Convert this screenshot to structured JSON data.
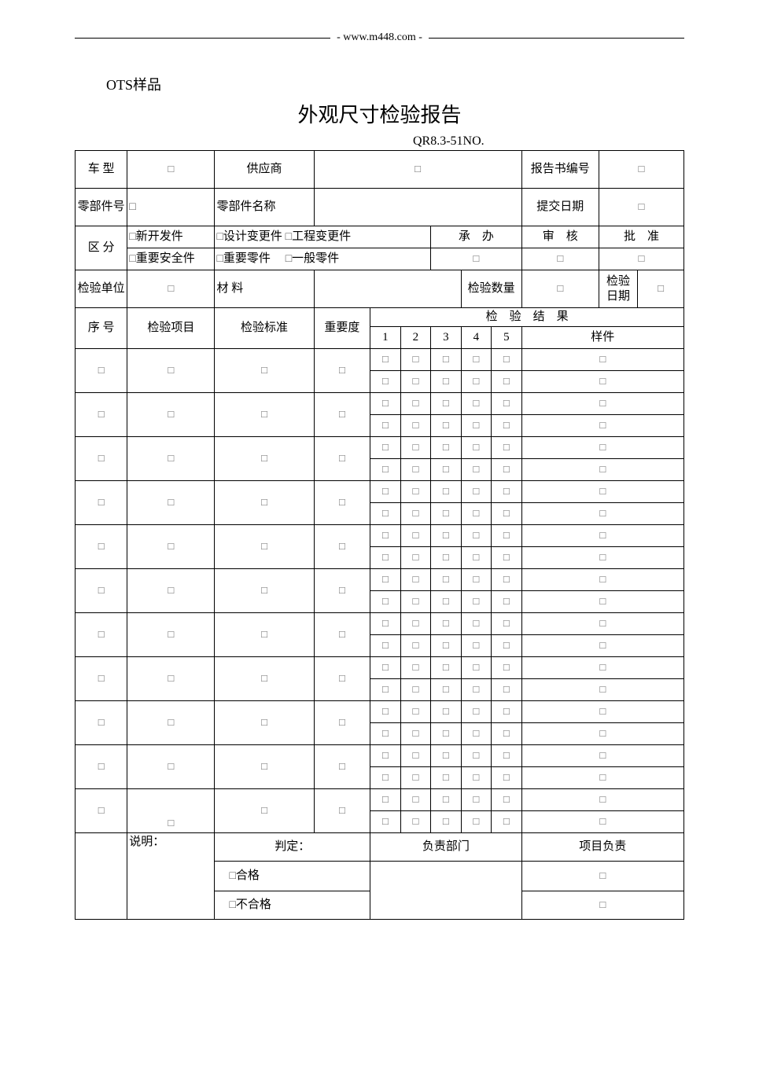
{
  "header": {
    "url": "- www.m448.com -"
  },
  "ots_label": "OTS样品",
  "title": "外观尺寸检验报告",
  "doc_no": "QR8.3-51NO.",
  "box": "□",
  "check_sq": "□",
  "labels": {
    "vehicle_type": "车 型",
    "supplier": "供应商",
    "report_no": "报告书编号",
    "part_no": "零部件号",
    "part_name": "零部件名称",
    "submit_date": "提交日期",
    "category": "区 分",
    "cat_new": "新开发件",
    "cat_design": "设计变更件",
    "cat_eng": "工程变更件",
    "cat_safety": "重要安全件",
    "cat_important": "重要零件",
    "cat_general": "一般零件",
    "handler": "承　办",
    "reviewer": "审　核",
    "approver": "批　准",
    "inspect_unit": "检验单位",
    "material": "材 料",
    "inspect_qty": "检验数量",
    "inspect_date": "检验日期",
    "seq": "序 号",
    "inspect_item": "检验项目",
    "inspect_std": "检验标准",
    "importance": "重要度",
    "inspect_result": "检　验　结　果",
    "sample": "样件",
    "cols": [
      "1",
      "2",
      "3",
      "4",
      "5"
    ],
    "desc": "说明：",
    "judgement": "判定：",
    "pass": "合格",
    "fail": "不合格",
    "dept": "负责部门",
    "proj_resp": "项目负责"
  },
  "rows": 11,
  "colors": {
    "border": "#000000",
    "bg": "#ffffff",
    "text": "#000000",
    "box": "#6b6b6b"
  }
}
